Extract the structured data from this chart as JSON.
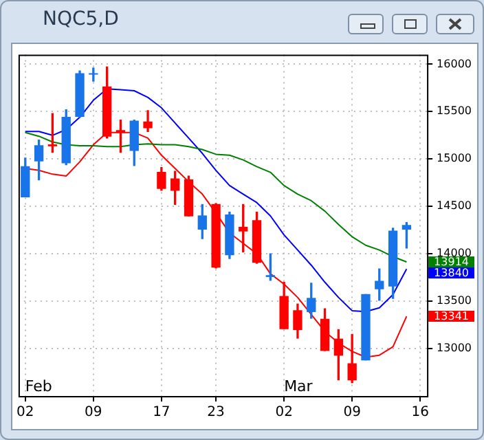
{
  "chart_data": {
    "type": "candlestick",
    "title": "NQC5,D",
    "categories": [
      "02",
      null,
      null,
      null,
      null,
      "09",
      null,
      null,
      null,
      null,
      "17",
      null,
      null,
      null,
      "23",
      null,
      null,
      null,
      null,
      "02",
      null,
      null,
      null,
      null,
      "09",
      null,
      null,
      null,
      null,
      "16"
    ],
    "ohlc": [
      [
        14600,
        15010,
        14600,
        14920
      ],
      [
        14980,
        15200,
        14780,
        15140
      ],
      [
        15150,
        15480,
        15070,
        15140
      ],
      [
        14960,
        15520,
        14940,
        15440
      ],
      [
        15450,
        15930,
        15440,
        15900
      ],
      [
        15895,
        15960,
        15820,
        15900
      ],
      [
        15760,
        15970,
        15220,
        15240
      ],
      [
        15300,
        15410,
        15070,
        15280
      ],
      [
        15090,
        15410,
        14930,
        15400
      ],
      [
        15390,
        15510,
        15290,
        15330
      ],
      [
        14860,
        14910,
        14670,
        14690
      ],
      [
        14790,
        14870,
        14520,
        14670
      ],
      [
        14780,
        14820,
        14400,
        14400
      ],
      [
        14260,
        14520,
        14160,
        14400
      ],
      [
        14520,
        14530,
        13850,
        13860
      ],
      [
        13990,
        14440,
        13950,
        14410
      ],
      [
        14280,
        14520,
        14020,
        14240
      ],
      [
        14350,
        14440,
        13900,
        13910
      ],
      [
        13760,
        14000,
        13720,
        13770
      ],
      [
        13550,
        13700,
        13210,
        13210
      ],
      [
        13400,
        13470,
        13110,
        13200
      ],
      [
        13390,
        13690,
        13320,
        13530
      ],
      [
        13310,
        13420,
        12980,
        12980
      ],
      [
        13100,
        13200,
        12670,
        12930
      ],
      [
        12840,
        13150,
        12640,
        12670
      ],
      [
        12880,
        13570,
        12880,
        13570
      ],
      [
        13630,
        13840,
        13510,
        13710
      ],
      [
        13660,
        14270,
        13530,
        14240
      ],
      [
        14260,
        14330,
        14060,
        14300
      ],
      null
    ],
    "colors": [
      "#1874e8",
      "#1874e8",
      "#ff0000",
      "#1874e8",
      "#1874e8",
      "#1874e8",
      "#ff0000",
      "#ff0000",
      "#1874e8",
      "#ff0000",
      "#ff0000",
      "#ff0000",
      "#ff0000",
      "#1874e8",
      "#ff0000",
      "#1874e8",
      "#ff0000",
      "#ff0000",
      "#1874e8",
      "#ff0000",
      "#ff0000",
      "#1874e8",
      "#ff0000",
      "#ff0000",
      "#ff0000",
      "#1874e8",
      "#1874e8",
      "#1874e8",
      "#1874e8",
      null
    ],
    "series": [
      {
        "type": "line",
        "color": "#008000",
        "values": [
          15280,
          15240,
          15180,
          15150,
          15140,
          15140,
          15130,
          15130,
          15150,
          15160,
          15150,
          15150,
          15130,
          15100,
          15050,
          15040,
          14990,
          14920,
          14860,
          14720,
          14630,
          14560,
          14450,
          14310,
          14180,
          14090,
          14040,
          13970,
          13914,
          null
        ]
      },
      {
        "type": "line",
        "color": "#0000ff",
        "values": [
          15290,
          15290,
          15250,
          15310,
          15440,
          15620,
          15740,
          15730,
          15720,
          15650,
          15540,
          15380,
          15220,
          15060,
          14880,
          14720,
          14630,
          14540,
          14400,
          14200,
          14040,
          13880,
          13700,
          13540,
          13400,
          13390,
          13430,
          13570,
          13840,
          null
        ]
      },
      {
        "type": "line",
        "color": "#ff0000",
        "values": [
          14900,
          14880,
          14840,
          14820,
          14970,
          15150,
          15280,
          15280,
          15280,
          15220,
          15040,
          14900,
          14760,
          14630,
          14430,
          14220,
          14110,
          14000,
          13790,
          13680,
          13540,
          13360,
          13180,
          13060,
          12970,
          12910,
          12930,
          13020,
          13341,
          null
        ]
      }
    ],
    "ylim": [
      12500,
      16100
    ],
    "yticks": [
      13000,
      13500,
      14000,
      14500,
      15000,
      15500,
      16000
    ],
    "grid": true,
    "legend": false,
    "marker": "none",
    "line_style": "solid",
    "annotations": [
      "Feb",
      "Mar",
      "13914",
      "13840",
      "13341"
    ]
  }
}
